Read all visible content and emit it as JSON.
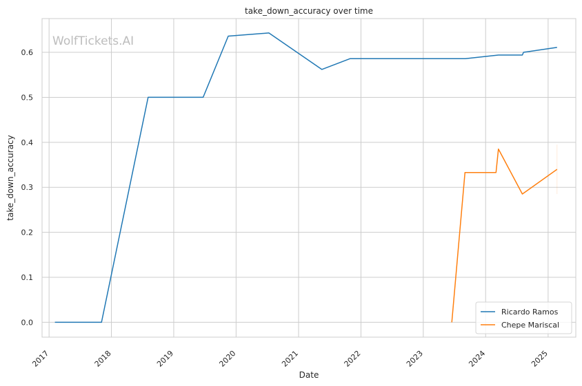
{
  "chart_data": {
    "type": "line",
    "title": "take_down_accuracy over time",
    "xlabel": "Date",
    "ylabel": "take_down_accuracy",
    "watermark": "WolfTickets.AI",
    "x_ticks": [
      "2017",
      "2018",
      "2019",
      "2020",
      "2021",
      "2022",
      "2023",
      "2024",
      "2025"
    ],
    "y_ticks": [
      "0.0",
      "0.1",
      "0.2",
      "0.3",
      "0.4",
      "0.5",
      "0.6"
    ],
    "xlim": [
      "2016-11-21",
      "2025-06-12"
    ],
    "ylim": [
      -0.033,
      0.675
    ],
    "grid": true,
    "legend_position": "lower right",
    "series": [
      {
        "name": "Ricardo Ramos",
        "color": "#1f77b4",
        "points": [
          [
            "2017-02-04",
            0.0
          ],
          [
            "2017-11-04",
            0.0
          ],
          [
            "2018-08-04",
            0.5
          ],
          [
            "2019-06-22",
            0.5
          ],
          [
            "2019-11-16",
            0.636
          ],
          [
            "2020-07-11",
            0.643
          ],
          [
            "2021-05-17",
            0.562
          ],
          [
            "2021-10-30",
            0.586
          ],
          [
            "2023-09-04",
            0.586
          ],
          [
            "2024-03-16",
            0.594
          ],
          [
            "2024-08-03",
            0.594
          ],
          [
            "2024-08-10",
            0.6
          ],
          [
            "2025-02-22",
            0.611
          ]
        ]
      },
      {
        "name": "Chepe Mariscal",
        "color": "#ff7f0e",
        "points": [
          [
            "2023-06-17",
            0.0
          ],
          [
            "2023-09-02",
            0.333
          ],
          [
            "2024-03-02",
            0.333
          ],
          [
            "2024-03-16",
            0.385
          ],
          [
            "2024-08-03",
            0.285
          ],
          [
            "2025-02-22",
            0.34
          ]
        ]
      }
    ]
  }
}
